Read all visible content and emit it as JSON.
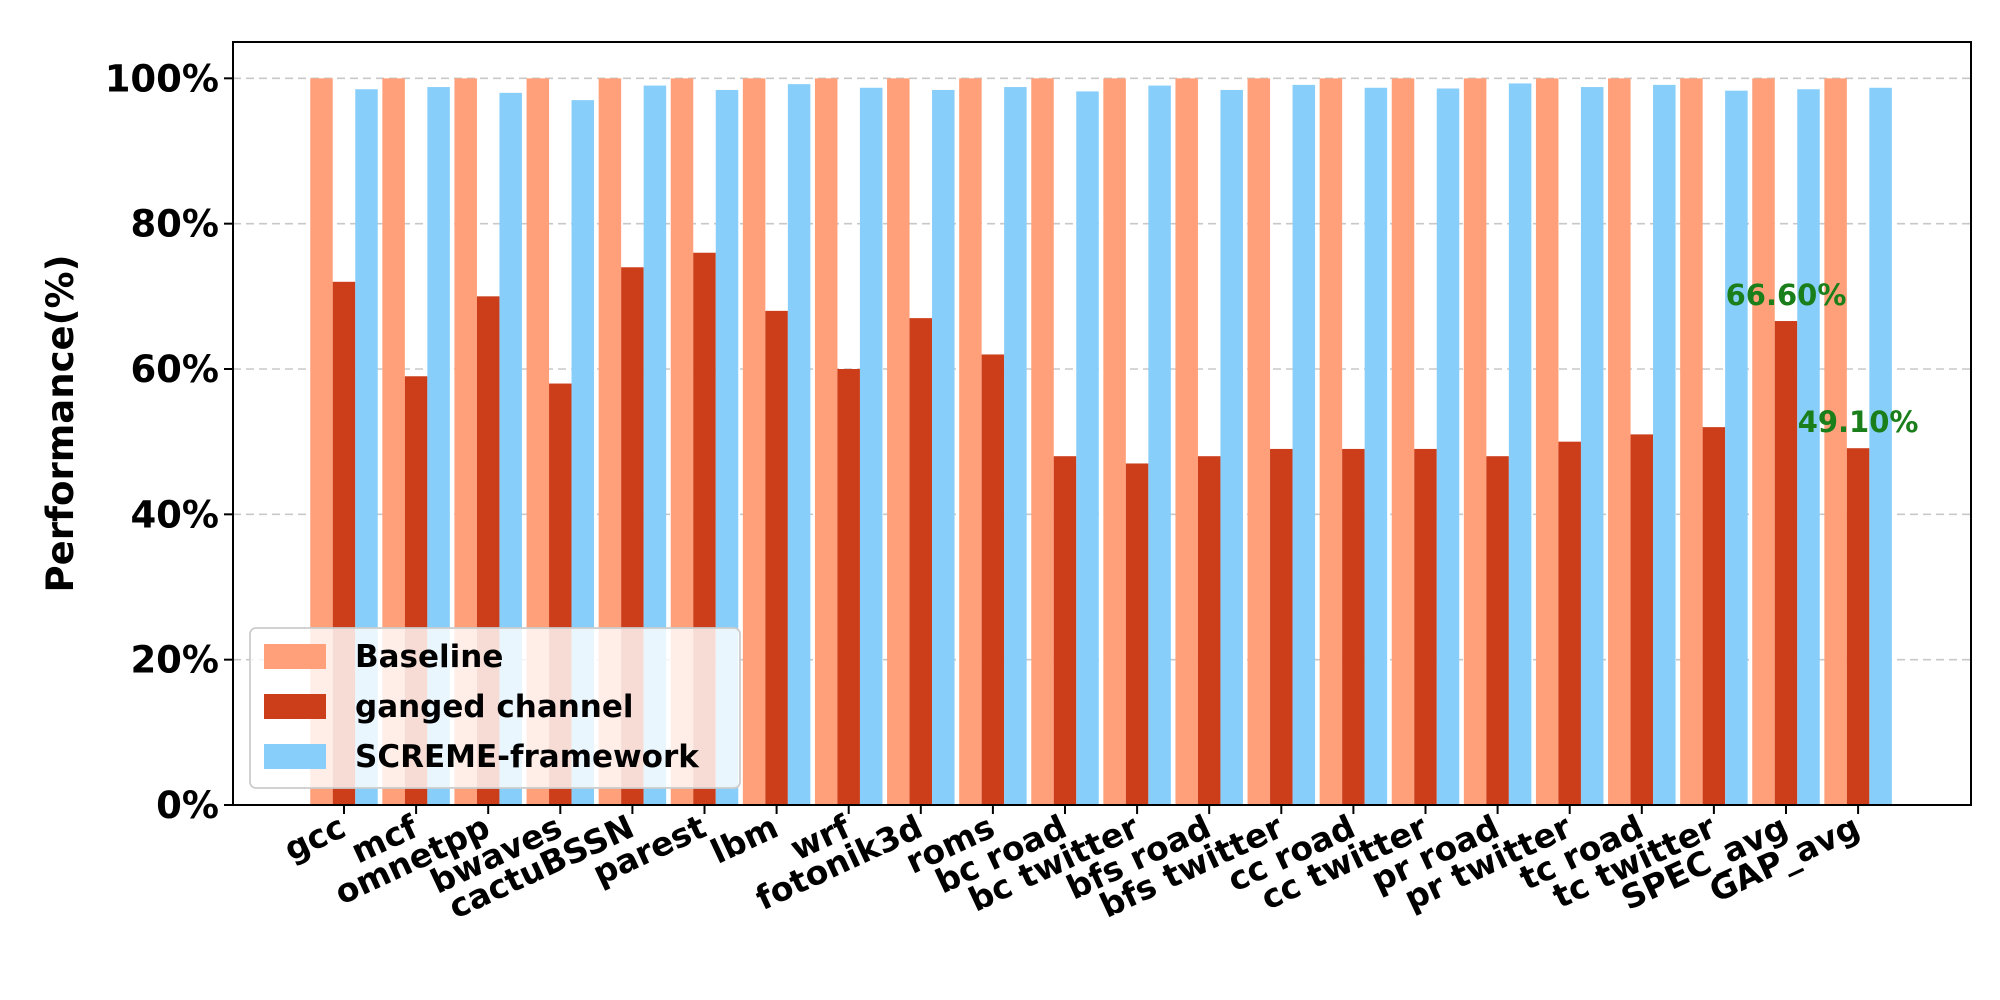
{
  "chart_data": {
    "type": "bar",
    "title": "",
    "xlabel": "",
    "ylabel": "Performance(%)",
    "ylim": [
      0,
      105
    ],
    "yticks": [
      0,
      20,
      40,
      60,
      80,
      100
    ],
    "ytick_labels": [
      "0%",
      "20%",
      "40%",
      "60%",
      "80%",
      "100%"
    ],
    "grid": "horizontal dashed",
    "legend_position": "bottom-left",
    "categories": [
      "gcc",
      "mcf",
      "omnetpp",
      "bwaves",
      "cactuBSSN",
      "parest",
      "lbm",
      "wrf",
      "fotonik3d",
      "roms",
      "bc road",
      "bc twitter",
      "bfs road",
      "bfs twitter",
      "cc road",
      "cc twitter",
      "pr road",
      "pr twitter",
      "tc road",
      "tc twitter",
      "SPEC_avg",
      "GAP_avg"
    ],
    "series": [
      {
        "name": "Baseline",
        "color": "#FFA07A",
        "values": [
          100,
          100,
          100,
          100,
          100,
          100,
          100,
          100,
          100,
          100,
          100,
          100,
          100,
          100,
          100,
          100,
          100,
          100,
          100,
          100,
          100,
          100
        ]
      },
      {
        "name": "ganged channel",
        "color": "#CC3D1A",
        "values": [
          72,
          59,
          70,
          58,
          74,
          76,
          68,
          60,
          67,
          62,
          48,
          47,
          48,
          49,
          49,
          49,
          48,
          50,
          51,
          52,
          66.6,
          49.1
        ]
      },
      {
        "name": "SCREME-framework",
        "color": "#87CEFA",
        "values": [
          98.5,
          98.8,
          98,
          97,
          99,
          98.4,
          99.2,
          98.7,
          98.4,
          98.8,
          98.2,
          99,
          98.4,
          99.1,
          98.7,
          98.6,
          99.3,
          98.8,
          99.1,
          98.3,
          98.5,
          98.7
        ]
      }
    ],
    "annotations": [
      {
        "text": "66.60%",
        "category": "SPEC_avg",
        "series": "ganged channel",
        "value": 66.6,
        "color": "#1A7F1A"
      },
      {
        "text": "49.10%",
        "category": "GAP_avg",
        "series": "ganged channel",
        "value": 49.1,
        "color": "#1A7F1A"
      }
    ]
  }
}
